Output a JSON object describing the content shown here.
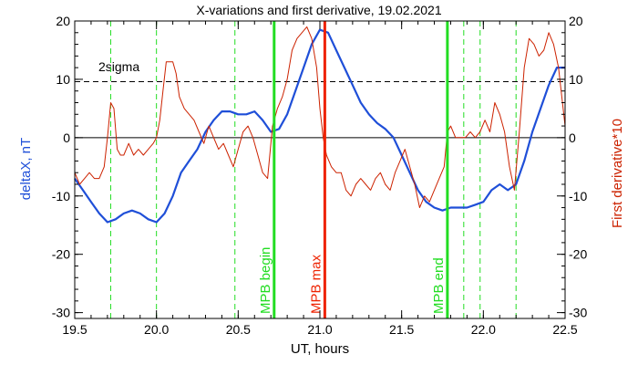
{
  "chart_data": {
    "type": "line",
    "title": "X-variations and first derivative, 19.02.2021",
    "xlabel": "UT, hours",
    "ylabel_left": "deltaX, nT",
    "ylabel_right": "First derivative*10",
    "xlim": [
      19.5,
      22.5
    ],
    "ylim": [
      -31,
      20
    ],
    "xticks": [
      "19.5",
      "20.0",
      "20.5",
      "21.0",
      "21.5",
      "22.0",
      "22.5"
    ],
    "yticks": [
      "-30",
      "-20",
      "-10",
      "0",
      "10",
      "20"
    ],
    "colors": {
      "deltaX": "#1f4fd8",
      "derivative": "#cc2200",
      "green": "#22dd22",
      "red_marker": "#ee2200"
    },
    "threshold": {
      "label": "2sigma",
      "value": 9.6
    },
    "zero_line": 0,
    "markers": [
      {
        "label": "MPB begin",
        "x": 20.72,
        "color": "#22dd22"
      },
      {
        "label": "MPB max",
        "x": 21.03,
        "color": "#ee2200"
      },
      {
        "label": "MPB end",
        "x": 21.78,
        "color": "#22dd22"
      }
    ],
    "dashed_markers": [
      19.72,
      20.0,
      20.48,
      21.88,
      21.98,
      22.2
    ],
    "series": [
      {
        "key": "deltaX",
        "x": [
          19.5,
          19.55,
          19.6,
          19.65,
          19.7,
          19.75,
          19.8,
          19.85,
          19.9,
          19.95,
          20.0,
          20.05,
          20.1,
          20.15,
          20.2,
          20.25,
          20.3,
          20.35,
          20.4,
          20.45,
          20.5,
          20.55,
          20.6,
          20.65,
          20.7,
          20.75,
          20.8,
          20.85,
          20.9,
          20.95,
          21.0,
          21.05,
          21.1,
          21.15,
          21.2,
          21.25,
          21.3,
          21.35,
          21.4,
          21.45,
          21.5,
          21.55,
          21.6,
          21.65,
          21.7,
          21.75,
          21.8,
          21.85,
          21.9,
          21.95,
          22.0,
          22.05,
          22.1,
          22.15,
          22.2,
          22.25,
          22.3,
          22.35,
          22.4,
          22.45,
          22.5
        ],
        "y": [
          -7,
          -9,
          -11,
          -13,
          -14.5,
          -14,
          -13,
          -12.5,
          -13,
          -14,
          -14.5,
          -13,
          -10,
          -6,
          -4,
          -2,
          1,
          3,
          4.5,
          4.5,
          4,
          4,
          4.5,
          3,
          1,
          1.5,
          4,
          8,
          12,
          16,
          18.5,
          18,
          15,
          12,
          9,
          6,
          4,
          2.5,
          1.5,
          0,
          -3,
          -6,
          -9,
          -11,
          -12,
          -12.5,
          -12,
          -12,
          -12,
          -11.5,
          -11,
          -9,
          -8,
          -9,
          -8,
          -4,
          1,
          5,
          9,
          12,
          12
        ]
      },
      {
        "key": "derivative",
        "x": [
          19.5,
          19.53,
          19.56,
          19.59,
          19.62,
          19.65,
          19.68,
          19.7,
          19.72,
          19.74,
          19.76,
          19.78,
          19.8,
          19.83,
          19.86,
          19.89,
          19.92,
          19.95,
          19.98,
          20.0,
          20.02,
          20.04,
          20.06,
          20.08,
          20.1,
          20.12,
          20.14,
          20.17,
          20.2,
          20.23,
          20.26,
          20.29,
          20.32,
          20.35,
          20.38,
          20.41,
          20.44,
          20.47,
          20.5,
          20.53,
          20.56,
          20.59,
          20.62,
          20.65,
          20.68,
          20.71,
          20.74,
          20.77,
          20.8,
          20.83,
          20.86,
          20.89,
          20.92,
          20.95,
          20.98,
          21.0,
          21.02,
          21.04,
          21.07,
          21.1,
          21.13,
          21.16,
          21.19,
          21.22,
          21.25,
          21.28,
          21.31,
          21.34,
          21.37,
          21.4,
          21.43,
          21.46,
          21.49,
          21.52,
          21.55,
          21.58,
          21.61,
          21.64,
          21.67,
          21.7,
          21.73,
          21.76,
          21.78,
          21.8,
          21.83,
          21.86,
          21.89,
          21.92,
          21.95,
          21.98,
          22.01,
          22.04,
          22.07,
          22.1,
          22.13,
          22.16,
          22.19,
          22.22,
          22.25,
          22.28,
          22.31,
          22.34,
          22.37,
          22.4,
          22.43,
          22.46,
          22.5
        ],
        "y": [
          -6,
          -8,
          -7,
          -6,
          -7,
          -7,
          -5,
          0,
          6,
          5,
          -2,
          -3,
          -3,
          -1,
          -3,
          -2,
          -3,
          -2,
          -1,
          0,
          3,
          8,
          13,
          13,
          13,
          11,
          7,
          5,
          4,
          3,
          1,
          -1,
          2,
          0,
          -2,
          -1,
          -3,
          -5,
          -2,
          1,
          2,
          0,
          -3,
          -6,
          -7,
          2,
          5,
          7,
          10,
          15,
          17,
          18,
          19,
          17,
          12,
          5,
          0,
          -3,
          -5,
          -6,
          -6,
          -9,
          -10,
          -8,
          -7,
          -8,
          -9,
          -7,
          -6,
          -8,
          -9,
          -6,
          -4,
          -2,
          -5,
          -8,
          -12,
          -10,
          -11,
          -9,
          -7,
          -5,
          1,
          2,
          0,
          0,
          0,
          1,
          0,
          1,
          3,
          1,
          6,
          4,
          1,
          -5,
          -9,
          1,
          12,
          17,
          16,
          14,
          15,
          18,
          16,
          12,
          2
        ]
      }
    ]
  }
}
